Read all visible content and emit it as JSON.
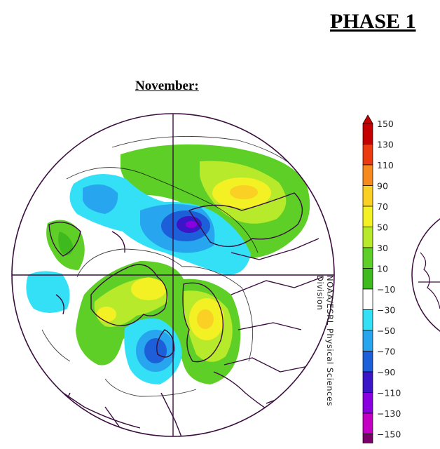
{
  "page": {
    "title": "PHASE 1"
  },
  "panel": {
    "title": "November:",
    "credit": "NOAA/ESRL Physical Sciences Division"
  },
  "colorbar": {
    "labels": [
      "150",
      "130",
      "110",
      "90",
      "70",
      "50",
      "30",
      "10",
      "−10",
      "−30",
      "−50",
      "−70",
      "−90",
      "−110",
      "−130",
      "−150"
    ],
    "colors": [
      "#c40000",
      "#ec3a10",
      "#f78a1e",
      "#fbd024",
      "#f3f024",
      "#b6ea2a",
      "#5ecf27",
      "#3fba1e",
      "#ffffff",
      "#33e0f5",
      "#27a6ef",
      "#1c5fd8",
      "#3a16c8",
      "#8a00e0",
      "#c400c4",
      "#7a006a"
    ]
  },
  "map": {
    "projection": "north-polar-stereographic",
    "anomaly_centers": [
      {
        "name": "north-pacific-ridge",
        "sign": "positive"
      },
      {
        "name": "polar-trough",
        "sign": "negative"
      },
      {
        "name": "greenland-canada-trough",
        "sign": "negative"
      },
      {
        "name": "alaska-bering-positive",
        "sign": "positive"
      },
      {
        "name": "eastern-us-atlantic-ridge",
        "sign": "positive"
      },
      {
        "name": "europe-ridge",
        "sign": "positive"
      },
      {
        "name": "north-atlantic-low",
        "sign": "negative"
      },
      {
        "name": "east-asia-trough",
        "sign": "negative"
      }
    ]
  }
}
